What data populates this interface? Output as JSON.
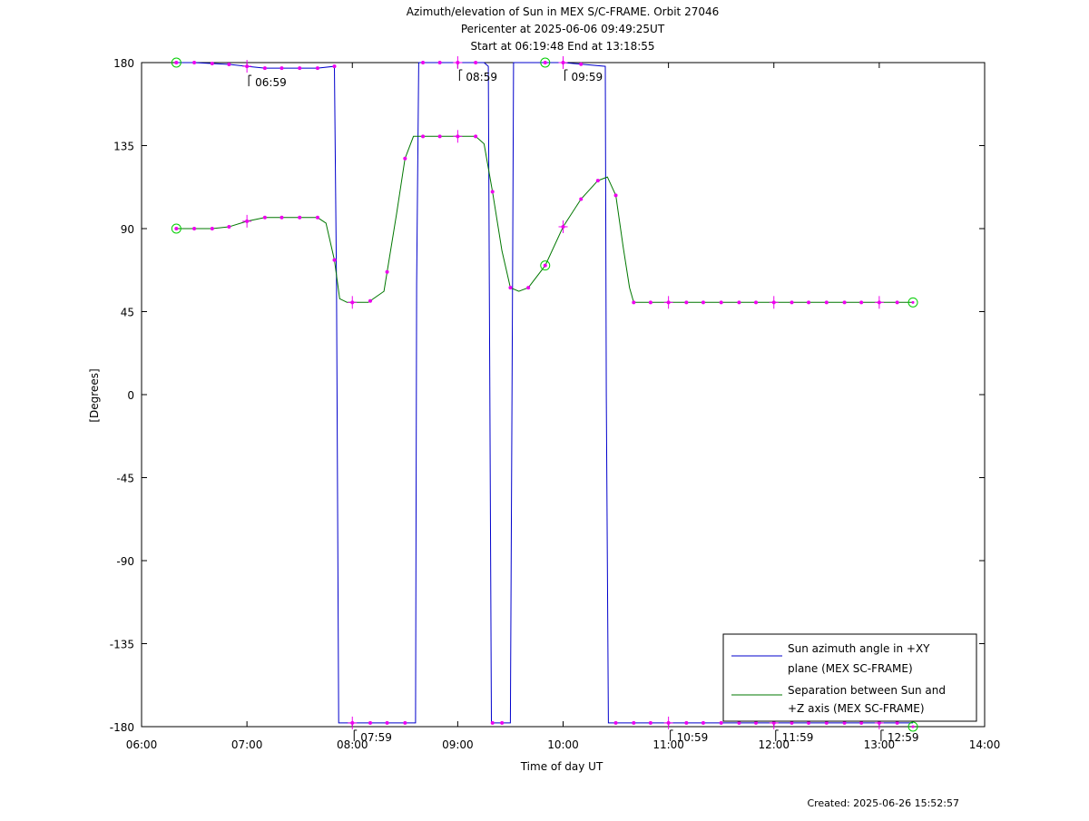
{
  "chart_data": {
    "type": "line",
    "title": [
      "Azimuth/elevation of Sun in MEX S/C-FRAME.  Orbit 27046",
      "Pericenter at 2025-06-06 09:49:25UT",
      "Start at 06:19:48 End at 13:18:55"
    ],
    "xlabel": "Time of day UT",
    "ylabel": "[Degrees]",
    "xlim": [
      6.0,
      14.0
    ],
    "ylim": [
      -180,
      180
    ],
    "x_unit": "hours UT",
    "x_ticks": [
      6,
      7,
      8,
      9,
      10,
      11,
      12,
      13,
      14
    ],
    "x_tick_labels": [
      "06:00",
      "07:00",
      "08:00",
      "09:00",
      "10:00",
      "11:00",
      "12:00",
      "13:00",
      "14:00"
    ],
    "y_ticks": [
      180,
      135,
      90,
      45,
      0,
      -45,
      -90,
      -135,
      -180
    ],
    "y_tick_labels": [
      "180",
      "135",
      "90",
      "45",
      "0",
      "-45",
      "-90",
      "-135",
      "-180"
    ],
    "grid": false,
    "legend_position": "bottom-right",
    "series": [
      {
        "name": "Sun azimuth angle in +XY plane (MEX SC-FRAME)",
        "color": "#0000cc",
        "x": [
          6.33,
          6.5,
          6.83,
          7.0,
          7.17,
          7.33,
          7.5,
          7.67,
          7.83,
          7.85,
          7.87,
          8.0,
          8.33,
          8.6,
          8.61,
          8.63,
          9.0,
          9.25,
          9.29,
          9.3,
          9.32,
          9.5,
          9.52,
          9.53,
          9.55,
          9.83,
          10.0,
          10.4,
          10.41,
          10.43,
          11.0,
          12.0,
          13.0,
          13.32
        ],
        "y": [
          180,
          180,
          179,
          178,
          177,
          177,
          177,
          177,
          178,
          60,
          -178,
          -178,
          -178,
          -178,
          60,
          180,
          180,
          180,
          178,
          60,
          -178,
          -178,
          60,
          180,
          180,
          180,
          180,
          178,
          0,
          -178,
          -178,
          -178,
          -178,
          -178
        ]
      },
      {
        "name": "Separation between Sun and +Z axis (MEX SC-FRAME)",
        "color": "#007700",
        "x": [
          6.33,
          6.5,
          6.67,
          6.83,
          7.0,
          7.17,
          7.33,
          7.5,
          7.67,
          7.75,
          7.83,
          7.88,
          7.95,
          8.05,
          8.15,
          8.3,
          8.42,
          8.5,
          8.58,
          8.63,
          8.83,
          9.0,
          9.17,
          9.25,
          9.33,
          9.42,
          9.5,
          9.58,
          9.67,
          9.83,
          10.0,
          10.17,
          10.33,
          10.42,
          10.5,
          10.57,
          10.63,
          10.67,
          10.83,
          11.0,
          11.5,
          12.0,
          12.5,
          13.0,
          13.32
        ],
        "y": [
          90,
          90,
          90,
          91,
          94,
          96,
          96,
          96,
          96,
          93,
          73,
          52,
          50,
          50,
          50,
          56,
          98,
          128,
          140,
          140,
          140,
          140,
          140,
          136,
          110,
          78,
          58,
          56,
          58,
          70,
          91,
          106,
          116,
          118,
          108,
          80,
          58,
          50,
          50,
          50,
          50,
          50,
          50,
          50,
          50
        ]
      }
    ],
    "markers": {
      "magenta_dots": {
        "color": "#ee00ee",
        "series1_x": [
          6.33,
          6.5,
          6.67,
          6.83,
          7.0,
          7.17,
          7.33,
          7.5,
          7.67,
          7.83,
          8.0,
          8.17,
          8.33,
          8.5,
          8.67,
          8.83,
          9.0,
          9.17,
          9.33,
          9.42,
          9.83,
          10.0,
          10.17,
          10.5,
          10.67,
          10.83,
          11.0,
          11.17,
          11.33,
          11.5,
          11.67,
          11.83,
          12.0,
          12.17,
          12.33,
          12.5,
          12.67,
          12.83,
          13.0,
          13.17
        ],
        "series2_x": [
          6.33,
          6.5,
          6.67,
          6.83,
          7.0,
          7.17,
          7.33,
          7.5,
          7.67,
          7.83,
          8.0,
          8.17,
          8.33,
          8.5,
          8.67,
          8.83,
          9.0,
          9.17,
          9.33,
          9.5,
          9.67,
          9.83,
          10.0,
          10.17,
          10.33,
          10.5,
          10.67,
          10.83,
          11.0,
          11.17,
          11.33,
          11.5,
          11.67,
          11.83,
          12.0,
          12.17,
          12.33,
          12.5,
          12.67,
          12.83,
          13.0,
          13.17
        ]
      },
      "green_circles": {
        "color": "#00cc00",
        "points": [
          {
            "x": 6.33,
            "y": 180
          },
          {
            "x": 6.33,
            "y": 90
          },
          {
            "x": 9.83,
            "y": 180
          },
          {
            "x": 9.83,
            "y": 70
          },
          {
            "x": 13.32,
            "y": 50
          },
          {
            "x": 13.32,
            "y": -180
          }
        ]
      }
    },
    "annotations": [
      {
        "label": "06:59",
        "x": 7.0,
        "y": 177,
        "position": "below"
      },
      {
        "label": "07:59",
        "x": 8.0,
        "y": -178,
        "position": "below"
      },
      {
        "label": "08:59",
        "x": 9.0,
        "y": 180,
        "position": "below"
      },
      {
        "label": "09:59",
        "x": 10.0,
        "y": 180,
        "position": "below"
      },
      {
        "label": "10:59",
        "x": 11.0,
        "y": -178,
        "position": "below"
      },
      {
        "label": "11:59",
        "x": 12.0,
        "y": -178,
        "position": "below"
      },
      {
        "label": "12:59",
        "x": 13.0,
        "y": -178,
        "position": "below"
      }
    ]
  },
  "footer": {
    "created": "Created: 2025-06-26 15:52:57"
  }
}
